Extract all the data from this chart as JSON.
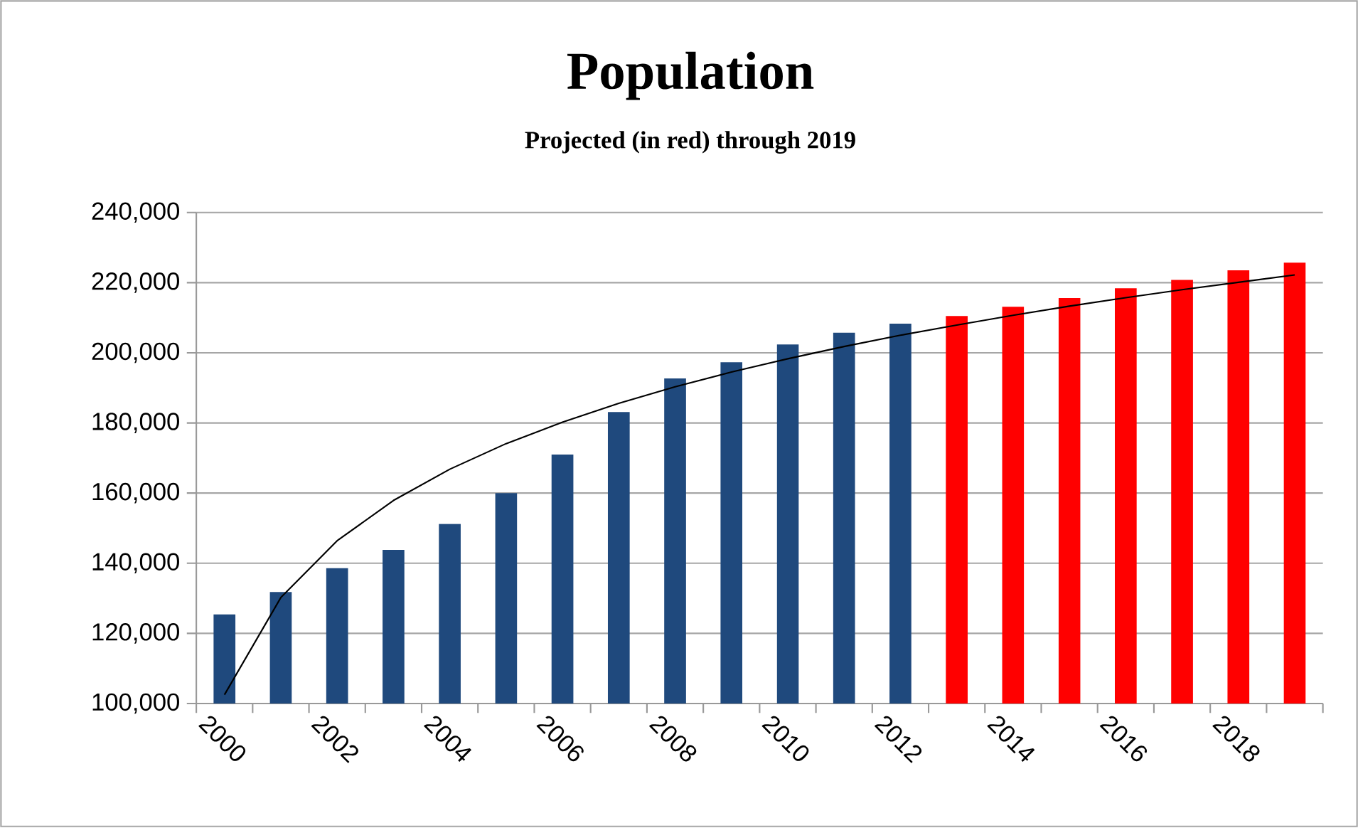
{
  "chart_data": {
    "type": "bar",
    "title": "Population",
    "subtitle": "Projected (in red) through 2019",
    "categories": [
      "2000",
      null,
      "2002",
      null,
      "2004",
      null,
      "2006",
      null,
      "2008",
      null,
      "2010",
      null,
      "2012",
      null,
      "2014",
      null,
      "2016",
      null,
      "2018",
      null
    ],
    "series": [
      {
        "colors": [
          "#1f497d",
          "#1f497d",
          "#1f497d",
          "#1f497d",
          "#1f497d",
          "#1f497d",
          "#1f497d",
          "#1f497d",
          "#1f497d",
          "#1f497d",
          "#1f497d",
          "#1f497d",
          "#1f497d",
          "#ff0000",
          "#ff0000",
          "#ff0000",
          "#ff0000",
          "#ff0000",
          "#ff0000",
          "#ff0000"
        ],
        "values": [
          125400,
          131800,
          138600,
          143800,
          151200,
          160000,
          171000,
          183100,
          192700,
          197300,
          202400,
          205700,
          208300,
          210500,
          213100,
          215600,
          218400,
          220800,
          223500,
          225700
        ]
      },
      {
        "type": "line",
        "color": "#000000",
        "values": [
          102500,
          130200,
          146400,
          157900,
          166800,
          174100,
          180200,
          185600,
          190300,
          194500,
          198300,
          201800,
          205000,
          207900,
          210700,
          213300,
          215700,
          218000,
          220100,
          222200
        ]
      }
    ],
    "ylim": [
      100000,
      240000
    ],
    "yticks": [
      {
        "value": 100000,
        "label": "100,000"
      },
      {
        "value": 120000,
        "label": "120,000"
      },
      {
        "value": 140000,
        "label": "140,000"
      },
      {
        "value": 160000,
        "label": "160,000"
      },
      {
        "value": 180000,
        "label": "180,000"
      },
      {
        "value": 200000,
        "label": "200,000"
      },
      {
        "value": 220000,
        "label": "220,000"
      },
      {
        "value": 240000,
        "label": "240,000"
      }
    ],
    "grid": "y"
  }
}
